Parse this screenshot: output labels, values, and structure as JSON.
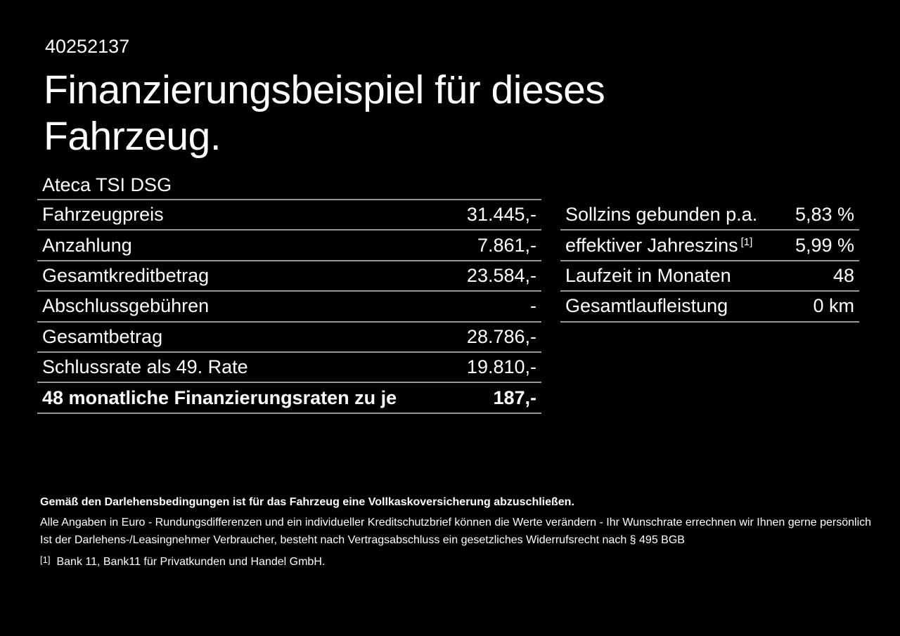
{
  "page": {
    "background_color": "#000000",
    "text_color": "#ffffff",
    "divider_color": "#979797"
  },
  "header": {
    "vehicle_id": "40252137",
    "title": "Finanzierungsbeispiel für dieses Fahrzeug."
  },
  "vehicle": {
    "model": "Ateca TSI DSG"
  },
  "financing_table": {
    "rows": [
      {
        "label": "Fahrzeugpreis",
        "value": "31.445,-"
      },
      {
        "label": "Anzahlung",
        "value": "7.861,-"
      },
      {
        "label": "Gesamtkreditbetrag",
        "value": "23.584,-"
      },
      {
        "label": "Abschlussgebühren",
        "value": "-"
      },
      {
        "label": "Gesamtbetrag",
        "value": "28.786,-"
      },
      {
        "label": "Schlussrate als 49. Rate",
        "value": "19.810,-"
      },
      {
        "label": "48 monatliche Finanzierungsraten zu je",
        "value": "187,-"
      }
    ]
  },
  "conditions_table": {
    "rows": [
      {
        "label": "Sollzins gebunden p.a.",
        "value": "5,83 %"
      },
      {
        "label": "effektiver Jahreszins",
        "footnote_marker": "[1]",
        "value": "5,99 %"
      },
      {
        "label": "Laufzeit in Monaten",
        "value": "48"
      },
      {
        "label": "Gesamtlaufleistung",
        "value": "0 km"
      }
    ]
  },
  "footer": {
    "insurance_note": "Gemäß den Darlehensbedingungen ist für das Fahrzeug eine Vollkaskoversicherung abzuschließen.",
    "disclaimer_line1": "Alle Angaben in Euro - Rundungsdifferenzen und ein individueller Kreditschutzbrief können die Werte verändern - Ihr Wunschrate errechnen wir Ihnen gerne persönlich",
    "disclaimer_line2": "Ist der Darlehens-/Leasingnehmer Verbraucher, besteht nach Vertragsabschluss ein gesetzliches Widerrufsrecht nach § 495 BGB",
    "footnote_marker": "[1]",
    "footnote_text": "Bank 11, Bank11 für Privatkunden und Handel GmbH."
  }
}
